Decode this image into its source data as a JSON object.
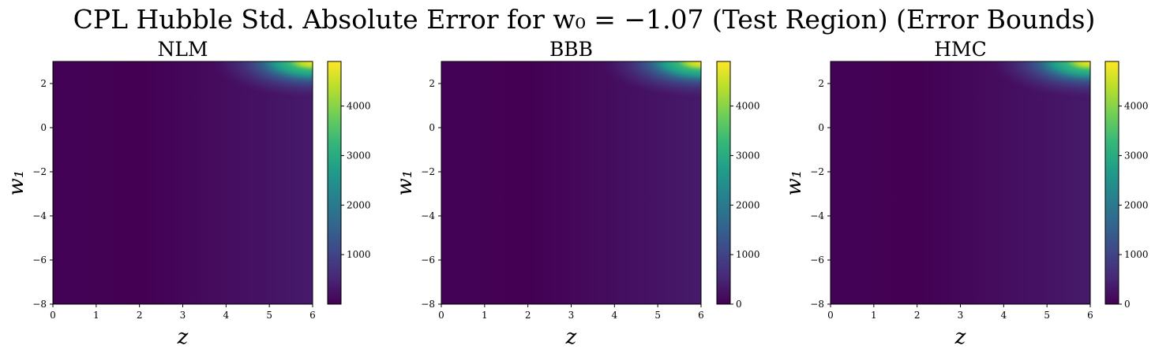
{
  "figure": {
    "title": "CPL Hubble Std. Absolute Error for w₀ = −1.07 (Test Region) (Error Bounds)"
  },
  "colors": {
    "viridis": [
      "#440154",
      "#482878",
      "#3e4989",
      "#31688e",
      "#26828e",
      "#1f9e89",
      "#35b779",
      "#6ece58",
      "#b5de2b",
      "#fde725"
    ]
  },
  "chart_data": [
    {
      "type": "heatmap",
      "title": "NLM",
      "xlabel": "z",
      "ylabel": "w₁",
      "xlim": [
        0,
        6
      ],
      "ylim": [
        -8,
        3
      ],
      "xticks": [
        "0",
        "1",
        "2",
        "3",
        "4",
        "5",
        "6"
      ],
      "yticks": [
        "2",
        "0",
        "−2",
        "−4",
        "−6",
        "−8"
      ],
      "ytick_values": [
        2,
        0,
        -2,
        -4,
        -6,
        -8
      ],
      "colorbar": {
        "min": 0,
        "max": 4900,
        "ticks": [
          "1000",
          "2000",
          "3000",
          "4000"
        ],
        "tick_values": [
          1000,
          2000,
          3000,
          4000
        ]
      }
    },
    {
      "type": "heatmap",
      "title": "BBB",
      "xlabel": "z",
      "ylabel": "w₁",
      "xlim": [
        0,
        6
      ],
      "ylim": [
        -8,
        3
      ],
      "xticks": [
        "0",
        "1",
        "2",
        "3",
        "4",
        "5",
        "6"
      ],
      "yticks": [
        "2",
        "0",
        "−2",
        "−4",
        "−6",
        "−8"
      ],
      "ytick_values": [
        2,
        0,
        -2,
        -4,
        -6,
        -8
      ],
      "colorbar": {
        "min": 0,
        "max": 4900,
        "ticks": [
          "0",
          "1000",
          "2000",
          "3000",
          "4000"
        ],
        "tick_values": [
          0,
          1000,
          2000,
          3000,
          4000
        ]
      }
    },
    {
      "type": "heatmap",
      "title": "HMC",
      "xlabel": "z",
      "ylabel": "w₁",
      "xlim": [
        0,
        6
      ],
      "ylim": [
        -8,
        3
      ],
      "xticks": [
        "0",
        "1",
        "2",
        "3",
        "4",
        "5",
        "6"
      ],
      "yticks": [
        "2",
        "0",
        "−2",
        "−4",
        "−6",
        "−8"
      ],
      "ytick_values": [
        2,
        0,
        -2,
        -4,
        -6,
        -8
      ],
      "colorbar": {
        "min": 0,
        "max": 4900,
        "ticks": [
          "0",
          "1000",
          "2000",
          "3000",
          "4000"
        ],
        "tick_values": [
          0,
          1000,
          2000,
          3000,
          4000
        ]
      }
    }
  ]
}
